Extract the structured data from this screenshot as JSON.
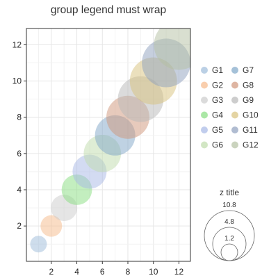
{
  "chart_data": {
    "type": "scatter",
    "title": "group legend must wrap",
    "xlabel": "",
    "ylabel": "",
    "xlim": [
      0.05,
      12.9
    ],
    "ylim": [
      0.05,
      12.9
    ],
    "xticks": [
      2,
      4,
      6,
      8,
      10,
      12
    ],
    "yticks": [
      2,
      4,
      6,
      8,
      10,
      12
    ],
    "grid": true,
    "series": [
      {
        "name": "G1",
        "color": "#9ebcda",
        "points": [
          {
            "x": 1,
            "y": 1,
            "z": 1.2
          }
        ]
      },
      {
        "name": "G2",
        "color": "#f6b98a",
        "points": [
          {
            "x": 2,
            "y": 2,
            "z": 2.0
          }
        ]
      },
      {
        "name": "G3",
        "color": "#cccccc",
        "points": [
          {
            "x": 3,
            "y": 3,
            "z": 3.0
          }
        ]
      },
      {
        "name": "G4",
        "color": "#88dd80",
        "points": [
          {
            "x": 4,
            "y": 4,
            "z": 4.0
          }
        ]
      },
      {
        "name": "G5",
        "color": "#a7b8e6",
        "points": [
          {
            "x": 5,
            "y": 5,
            "z": 5.0
          }
        ]
      },
      {
        "name": "G6",
        "color": "#bfdcab",
        "points": [
          {
            "x": 6,
            "y": 6,
            "z": 6.0
          }
        ]
      },
      {
        "name": "G7",
        "color": "#7fa6c8",
        "points": [
          {
            "x": 7,
            "y": 7,
            "z": 7.0
          }
        ]
      },
      {
        "name": "G8",
        "color": "#d0957a",
        "points": [
          {
            "x": 8,
            "y": 8,
            "z": 8.0
          }
        ]
      },
      {
        "name": "G9",
        "color": "#b8b8b8",
        "points": [
          {
            "x": 9,
            "y": 9,
            "z": 9.0
          }
        ]
      },
      {
        "name": "G10",
        "color": "#d8c27c",
        "points": [
          {
            "x": 10,
            "y": 10,
            "z": 9.6
          }
        ]
      },
      {
        "name": "G11",
        "color": "#8e9fbd",
        "points": [
          {
            "x": 11,
            "y": 11,
            "z": 10.2
          }
        ]
      },
      {
        "name": "G12",
        "color": "#b4c0a2",
        "points": [
          {
            "x": 12,
            "y": 12,
            "z": 10.8
          }
        ]
      }
    ],
    "legend": {
      "placement": "right",
      "columns": 2
    },
    "size_legend": {
      "title": "z title",
      "values": [
        10.8,
        4.8,
        1.2
      ]
    },
    "marker_alpha": 0.5
  }
}
